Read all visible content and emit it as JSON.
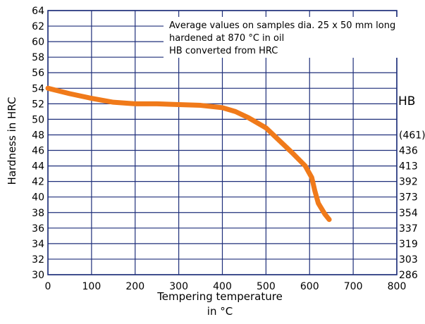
{
  "chart_data": {
    "type": "line",
    "xlabel": [
      "Tempering temperature",
      "in °C"
    ],
    "ylabel": "Hardness in HRC",
    "xlim": [
      0,
      800
    ],
    "ylim": [
      30,
      64
    ],
    "x_ticks": [
      "0",
      "100",
      "200",
      "300",
      "400",
      "500",
      "600",
      "700",
      "800"
    ],
    "y_ticks": [
      "30",
      "32",
      "34",
      "36",
      "38",
      "40",
      "42",
      "44",
      "46",
      "48",
      "50",
      "52",
      "54",
      "56",
      "58",
      "60",
      "62",
      "64"
    ],
    "grid": true,
    "secondary_axis": {
      "title": "HB",
      "labels": [
        {
          "hrc": 48,
          "label": "(461)"
        },
        {
          "hrc": 46,
          "label": "436"
        },
        {
          "hrc": 44,
          "label": "413"
        },
        {
          "hrc": 42,
          "label": "392"
        },
        {
          "hrc": 40,
          "label": "373"
        },
        {
          "hrc": 38,
          "label": "354"
        },
        {
          "hrc": 36,
          "label": "337"
        },
        {
          "hrc": 34,
          "label": "319"
        },
        {
          "hrc": 32,
          "label": "303"
        },
        {
          "hrc": 30,
          "label": "286"
        }
      ]
    },
    "annotation": [
      "Average values on samples dia. 25 x 50 mm long",
      "hardened at 870 °C in oil",
      "HB converted from HRC"
    ],
    "series": [
      {
        "color": "#f07a1a",
        "x": [
          0,
          50,
          100,
          150,
          200,
          250,
          300,
          350,
          400,
          430,
          460,
          500,
          530,
          560,
          590,
          605,
          612,
          620,
          635,
          645
        ],
        "y": [
          54.0,
          53.3,
          52.7,
          52.2,
          52.0,
          52.0,
          51.9,
          51.8,
          51.5,
          51.0,
          50.2,
          48.9,
          47.3,
          45.7,
          44.0,
          42.5,
          40.8,
          39.2,
          37.8,
          37.1
        ]
      }
    ]
  }
}
